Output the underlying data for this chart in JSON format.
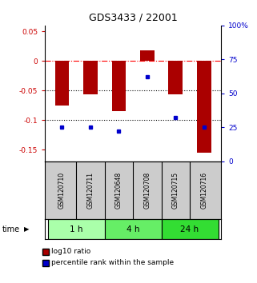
{
  "title": "GDS3433 / 22001",
  "samples": [
    "GSM120710",
    "GSM120711",
    "GSM120648",
    "GSM120708",
    "GSM120715",
    "GSM120716"
  ],
  "log10_ratio": [
    -0.075,
    -0.057,
    -0.085,
    0.018,
    -0.057,
    -0.155
  ],
  "percentile_rank": [
    25,
    25,
    22,
    62,
    32,
    25
  ],
  "time_groups": [
    {
      "label": "1 h",
      "samples": [
        0,
        1
      ],
      "color": "#aaffaa"
    },
    {
      "label": "4 h",
      "samples": [
        2,
        3
      ],
      "color": "#66ee66"
    },
    {
      "label": "24 h",
      "samples": [
        4,
        5
      ],
      "color": "#33dd33"
    }
  ],
  "bar_color": "#aa0000",
  "dot_color": "#0000cc",
  "ylim_left": [
    -0.17,
    0.06
  ],
  "ylim_right": [
    0,
    100
  ],
  "yticks_left": [
    0.05,
    0.0,
    -0.05,
    -0.1,
    -0.15
  ],
  "yticks_right": [
    100,
    75,
    50,
    25,
    0
  ],
  "hline_y": [
    0.0,
    -0.05,
    -0.1
  ],
  "hline_styles": [
    "dashdot",
    "dotted",
    "dotted"
  ],
  "hline_colors": [
    "red",
    "black",
    "black"
  ],
  "bar_width": 0.5,
  "left_tick_color": "#cc0000",
  "right_tick_color": "#0000cc",
  "bg_color": "#ffffff",
  "sample_bg_color": "#cccccc",
  "legend_red_label": "log10 ratio",
  "legend_blue_label": "percentile rank within the sample"
}
